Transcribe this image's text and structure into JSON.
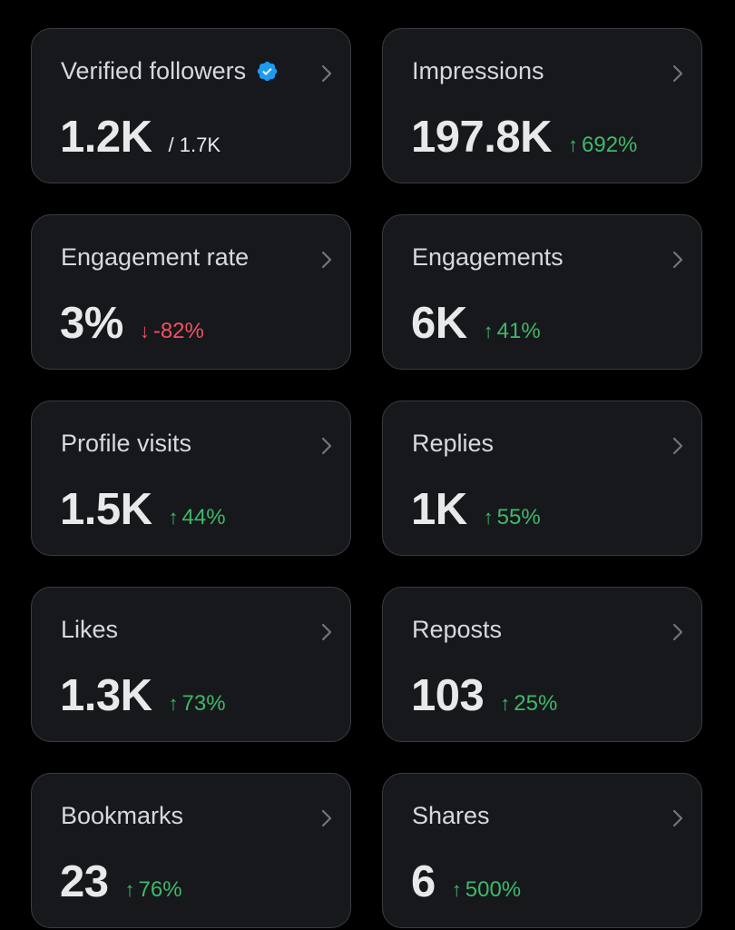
{
  "colors": {
    "background": "#000000",
    "card_bg": "#16181c",
    "card_border": "#3a3d42",
    "up": "#3fb968",
    "down": "#f4525e",
    "verified": "#1d9bf0"
  },
  "cards": [
    {
      "title": "Verified followers",
      "value": "1.2K",
      "secondary": "/ 1.7K",
      "verified": true
    },
    {
      "title": "Impressions",
      "value": "197.8K",
      "change": "692%",
      "direction": "up",
      "arrow": "↑"
    },
    {
      "title": "Engagement rate",
      "value": "3%",
      "change": "-82%",
      "direction": "down",
      "arrow": "↓"
    },
    {
      "title": "Engagements",
      "value": "6K",
      "change": "41%",
      "direction": "up",
      "arrow": "↑"
    },
    {
      "title": "Profile visits",
      "value": "1.5K",
      "change": "44%",
      "direction": "up",
      "arrow": "↑"
    },
    {
      "title": "Replies",
      "value": "1K",
      "change": "55%",
      "direction": "up",
      "arrow": "↑"
    },
    {
      "title": "Likes",
      "value": "1.3K",
      "change": "73%",
      "direction": "up",
      "arrow": "↑"
    },
    {
      "title": "Reposts",
      "value": "103",
      "change": "25%",
      "direction": "up",
      "arrow": "↑"
    },
    {
      "title": "Bookmarks",
      "value": "23",
      "change": "76%",
      "direction": "up",
      "arrow": "↑"
    },
    {
      "title": "Shares",
      "value": "6",
      "change": "500%",
      "direction": "up",
      "arrow": "↑"
    }
  ]
}
